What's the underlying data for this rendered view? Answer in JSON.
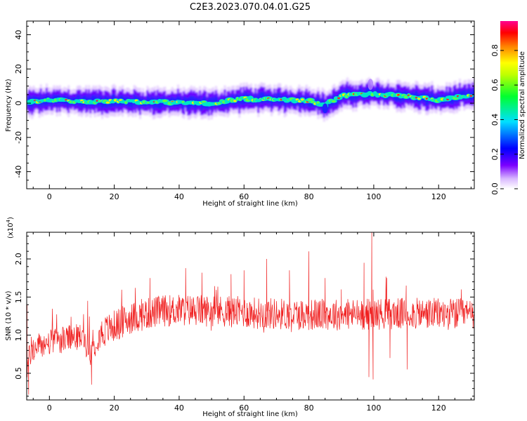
{
  "figure_title": "C2E3.2023.070.04.01.G25",
  "chart_data": [
    {
      "type": "heatmap",
      "xlabel": "Height of straight line (km)",
      "ylabel": "Frequency (Hz)",
      "xlim": [
        -7,
        131
      ],
      "ylim": [
        -50,
        48
      ],
      "xticks": [
        0,
        20,
        40,
        60,
        80,
        100,
        120
      ],
      "yticks": [
        -40,
        -20,
        0,
        20,
        40
      ],
      "colorbar": {
        "label": "Normalized spectral amplitude",
        "range": [
          0.0,
          0.97
        ],
        "ticks": [
          0.0,
          0.2,
          0.4,
          0.6,
          0.8
        ],
        "colormap": "rainbow (white-violet-blue-cyan-green-yellow-red-magenta)"
      },
      "band": {
        "description": "high-amplitude band centred near 0-5 Hz across all heights",
        "center_hz": [
          [
            -7,
            0.5
          ],
          [
            0,
            1.5
          ],
          [
            20,
            1
          ],
          [
            40,
            0.5
          ],
          [
            50,
            0
          ],
          [
            60,
            2.5
          ],
          [
            80,
            1.5
          ],
          [
            85,
            -1.5
          ],
          [
            90,
            4.5
          ],
          [
            100,
            5.5
          ],
          [
            110,
            4
          ],
          [
            120,
            2
          ],
          [
            131,
            5
          ]
        ],
        "half_width_hz": 5
      }
    },
    {
      "type": "line",
      "xlabel": "Height of straight line (km)",
      "ylabel": "SNR (10 * v/v)",
      "yscale_label": "(x10",
      "yscale_exp": "4",
      "xlim": [
        -7,
        131
      ],
      "ylim": [
        0.15,
        2.35
      ],
      "xticks": [
        0,
        20,
        40,
        60,
        80,
        100,
        120
      ],
      "yticks": [
        0.5,
        1.0,
        1.5,
        2.0
      ],
      "series": [
        {
          "color": "#f02020",
          "trend_x": [
            -7,
            -6,
            -4,
            0,
            5,
            10,
            12,
            13,
            15,
            20,
            25,
            30,
            35,
            40,
            50,
            60,
            70,
            80,
            90,
            100,
            110,
            120,
            131
          ],
          "trend_y": [
            0.55,
            0.75,
            0.85,
            0.9,
            0.95,
            0.98,
            0.85,
            0.75,
            1.0,
            1.12,
            1.22,
            1.28,
            1.32,
            1.33,
            1.32,
            1.3,
            1.28,
            1.27,
            1.27,
            1.28,
            1.28,
            1.28,
            1.27
          ],
          "spikes": [
            {
              "x": -6.4,
              "y": 0.22
            },
            {
              "x": -6.9,
              "y": 1.4
            },
            {
              "x": 13,
              "y": 0.35
            },
            {
              "x": 11.8,
              "y": 1.45
            },
            {
              "x": 31,
              "y": 1.75
            },
            {
              "x": 42,
              "y": 1.88
            },
            {
              "x": 47,
              "y": 1.82
            },
            {
              "x": 56,
              "y": 1.8
            },
            {
              "x": 60,
              "y": 1.85
            },
            {
              "x": 67,
              "y": 2.0
            },
            {
              "x": 74,
              "y": 1.85
            },
            {
              "x": 80,
              "y": 2.1
            },
            {
              "x": 85,
              "y": 1.75
            },
            {
              "x": 90,
              "y": 1.6
            },
            {
              "x": 97,
              "y": 1.95
            },
            {
              "x": 99.4,
              "y": 2.35
            },
            {
              "x": 98.5,
              "y": 0.45
            },
            {
              "x": 99.8,
              "y": 0.42
            },
            {
              "x": 104,
              "y": 1.75
            },
            {
              "x": 110,
              "y": 1.65
            },
            {
              "x": 110.3,
              "y": 0.55
            },
            {
              "x": 105,
              "y": 0.7
            },
            {
              "x": 127,
              "y": 1.6
            }
          ]
        }
      ]
    }
  ]
}
